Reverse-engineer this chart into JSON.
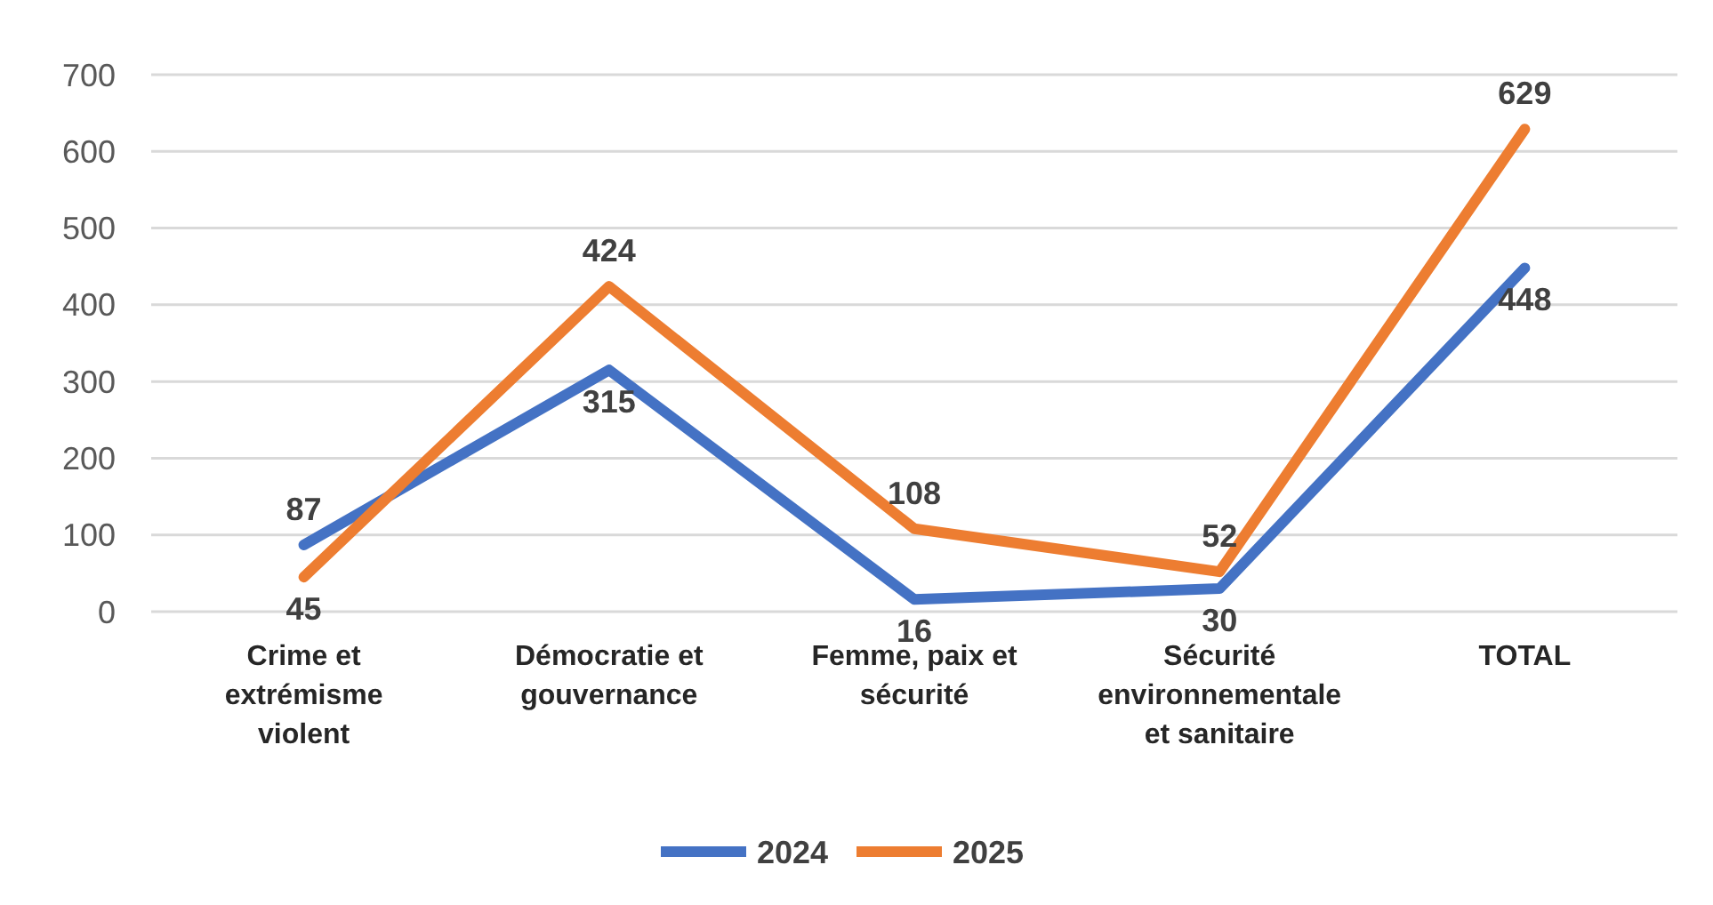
{
  "chart_data": {
    "type": "line",
    "categories": [
      "Crime et\nextrémisme\nviolent",
      "Démocratie et\ngouvernance",
      "Femme, paix et\nsécurité",
      "Sécurité\nenvironnementale\net sanitaire",
      "TOTAL"
    ],
    "series": [
      {
        "name": "2024",
        "color": "#4472c4",
        "values": [
          87,
          315,
          16,
          30,
          448
        ]
      },
      {
        "name": "2025",
        "color": "#ed7d31",
        "values": [
          45,
          424,
          108,
          52,
          629
        ]
      }
    ],
    "ylim": [
      0,
      700
    ],
    "yticks": [
      0,
      100,
      200,
      300,
      400,
      500,
      600,
      700
    ],
    "grid": "y",
    "legend": "bottom",
    "data_labels": true,
    "marker": "none",
    "line_style": "solid"
  }
}
